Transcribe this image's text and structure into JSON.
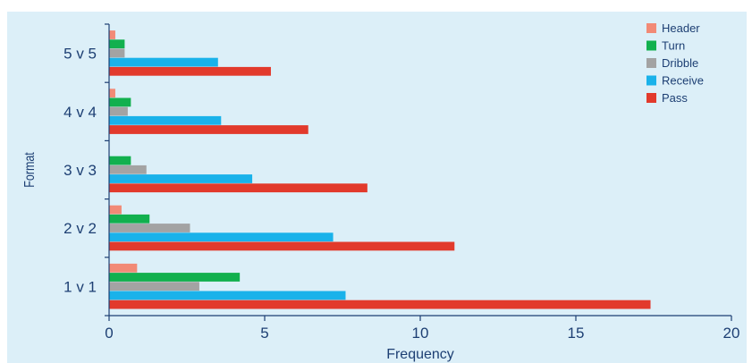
{
  "chart_data": {
    "type": "bar",
    "orientation": "horizontal",
    "categories": [
      "1 v 1",
      "2 v 2",
      "3 v 3",
      "4 v 4",
      "5 v 5"
    ],
    "series": [
      {
        "name": "Pass",
        "color": "#e23a2c",
        "values": [
          17.4,
          11.1,
          8.3,
          6.4,
          5.2
        ]
      },
      {
        "name": "Receive",
        "color": "#1ab2ea",
        "values": [
          7.6,
          7.2,
          4.6,
          3.6,
          3.5
        ]
      },
      {
        "name": "Dribble",
        "color": "#a3a3a3",
        "values": [
          2.9,
          2.6,
          1.2,
          0.6,
          0.5
        ]
      },
      {
        "name": "Turn",
        "color": "#12b04e",
        "values": [
          4.2,
          1.3,
          0.7,
          0.7,
          0.5
        ]
      },
      {
        "name": "Header",
        "color": "#f28a76",
        "values": [
          0.9,
          0.4,
          0.0,
          0.2,
          0.2
        ]
      }
    ],
    "legend_order": [
      "Header",
      "Turn",
      "Dribble",
      "Receive",
      "Pass"
    ],
    "xlim": [
      0,
      20
    ],
    "xticks": [
      0,
      5,
      10,
      15,
      20
    ],
    "xlabel": "Frequency",
    "ylabel": "Format",
    "legend_position": "top-right",
    "grid": false,
    "background": "#dceff8",
    "axis_color": "#1d3f73"
  }
}
